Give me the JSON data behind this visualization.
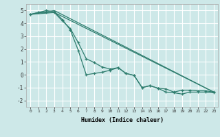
{
  "background_color": "#cde8e8",
  "grid_color": "#ffffff",
  "line_color": "#2e7d6e",
  "xlabel": "Humidex (Indice chaleur)",
  "ylim": [
    -2.5,
    5.5
  ],
  "xlim": [
    -0.5,
    23.5
  ],
  "yticks": [
    -2,
    -1,
    0,
    1,
    2,
    3,
    4,
    5
  ],
  "xticks": [
    0,
    1,
    2,
    3,
    4,
    5,
    6,
    7,
    8,
    9,
    10,
    11,
    12,
    13,
    14,
    15,
    16,
    17,
    18,
    19,
    20,
    21,
    22,
    23
  ],
  "series1_x": [
    0,
    1,
    2,
    3,
    4,
    5,
    6,
    7,
    8,
    9,
    10,
    11,
    12,
    13,
    14,
    15,
    16,
    17,
    18,
    19,
    20,
    21,
    22,
    23
  ],
  "series1_y": [
    4.7,
    4.85,
    4.85,
    4.85,
    4.2,
    3.6,
    2.5,
    1.25,
    0.95,
    0.6,
    0.45,
    0.55,
    0.1,
    -0.05,
    -1.0,
    -0.85,
    -1.05,
    -1.1,
    -1.35,
    -1.2,
    -1.2,
    -1.25,
    -1.25,
    -1.35
  ],
  "series2_x": [
    0,
    1,
    2,
    3,
    4,
    5,
    6,
    7,
    8,
    9,
    10,
    11,
    12,
    13,
    14,
    15,
    16,
    17,
    18,
    19,
    20,
    21,
    22,
    23
  ],
  "series2_y": [
    4.7,
    4.85,
    5.0,
    4.9,
    4.3,
    3.5,
    1.9,
    0.0,
    0.1,
    0.2,
    0.35,
    0.55,
    0.1,
    -0.05,
    -1.0,
    -0.85,
    -1.05,
    -1.35,
    -1.4,
    -1.5,
    -1.35,
    -1.35,
    -1.35,
    -1.4
  ],
  "series3_x": [
    0,
    3,
    23
  ],
  "series3_y": [
    4.7,
    5.0,
    -1.35
  ],
  "series4_x": [
    0,
    3,
    23
  ],
  "series4_y": [
    4.7,
    4.85,
    -1.35
  ]
}
